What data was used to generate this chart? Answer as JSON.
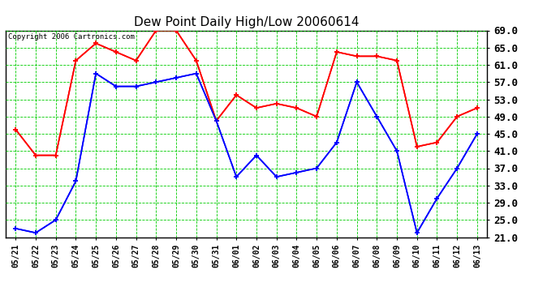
{
  "title": "Dew Point Daily High/Low 20060614",
  "copyright": "Copyright 2006 Cartronics.com",
  "dates": [
    "05/21",
    "05/22",
    "05/23",
    "05/24",
    "05/25",
    "05/26",
    "05/27",
    "05/28",
    "05/29",
    "05/30",
    "05/31",
    "06/01",
    "06/02",
    "06/03",
    "06/04",
    "06/05",
    "06/06",
    "06/07",
    "06/08",
    "06/09",
    "06/10",
    "06/11",
    "06/12",
    "06/13"
  ],
  "high": [
    46,
    40,
    40,
    62,
    66,
    64,
    62,
    69,
    69,
    62,
    48,
    54,
    51,
    52,
    51,
    49,
    64,
    63,
    63,
    62,
    42,
    43,
    49,
    51
  ],
  "low": [
    23,
    22,
    25,
    34,
    59,
    56,
    56,
    57,
    58,
    59,
    48,
    35,
    40,
    35,
    36,
    37,
    43,
    57,
    49,
    41,
    22,
    30,
    37,
    45
  ],
  "ymin": 21.0,
  "ymax": 69.0,
  "ytick_values": [
    21.0,
    25.0,
    29.0,
    33.0,
    37.0,
    41.0,
    45.0,
    49.0,
    53.0,
    57.0,
    61.0,
    65.0,
    69.0
  ],
  "high_color": "#ff0000",
  "low_color": "#0000ff",
  "fig_bg_color": "#ffffff",
  "plot_bg_color": "#ffffff",
  "grid_color": "#00cc00",
  "title_fontsize": 11,
  "copyright_fontsize": 6.5,
  "tick_fontsize": 7,
  "ytick_fontsize": 9
}
